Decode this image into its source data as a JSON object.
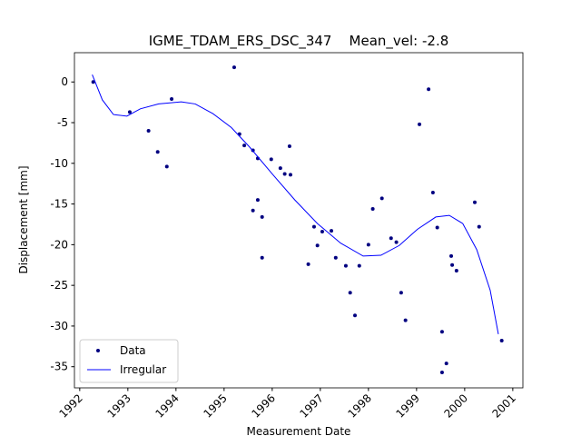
{
  "chart_data": {
    "type": "scatter",
    "title": "IGME_TDAM_ERS_DSC_347    Mean_vel: -2.8",
    "xlabel": "Measurement Date",
    "ylabel": "Displacement [mm]",
    "xlim": [
      1991.89,
      2001.21
    ],
    "ylim": [
      -37.6,
      3.6
    ],
    "xticks": [
      1992,
      1993,
      1994,
      1995,
      1996,
      1997,
      1998,
      1999,
      2000,
      2001
    ],
    "yticks": [
      0,
      -5,
      -10,
      -15,
      -20,
      -25,
      -30,
      -35
    ],
    "legend": "lower left",
    "series": [
      {
        "name": "Data",
        "mode": "markers",
        "color": "#000080",
        "x": [
          1992.28,
          1993.04,
          1993.43,
          1993.62,
          1993.81,
          1993.91,
          1995.21,
          1995.32,
          1995.42,
          1995.6,
          1995.7,
          1995.6,
          1995.7,
          1995.79,
          1995.79,
          1995.98,
          1996.17,
          1996.26,
          1996.36,
          1996.38,
          1996.75,
          1996.87,
          1996.94,
          1997.04,
          1997.23,
          1997.32,
          1997.53,
          1997.62,
          1997.72,
          1997.81,
          1998.0,
          1998.09,
          1998.28,
          1998.47,
          1998.58,
          1998.68,
          1998.77,
          1999.06,
          1999.25,
          1999.34,
          1999.43,
          1999.53,
          1999.53,
          1999.62,
          1999.72,
          1999.74,
          1999.83,
          2000.21,
          2000.3,
          2000.77
        ],
        "values": [
          0,
          -3.7,
          -6.0,
          -8.6,
          -10.4,
          -2.1,
          1.8,
          -6.4,
          -7.8,
          -8.4,
          -9.4,
          -15.8,
          -14.5,
          -16.6,
          -21.6,
          -9.5,
          -10.6,
          -11.3,
          -7.9,
          -11.4,
          -22.4,
          -17.8,
          -20.1,
          -18.4,
          -18.3,
          -21.6,
          -22.6,
          -25.9,
          -28.7,
          -22.6,
          -20.0,
          -15.6,
          -14.3,
          -19.2,
          -19.7,
          -25.9,
          -29.3,
          -5.2,
          -0.9,
          -13.6,
          -17.9,
          -30.7,
          -35.7,
          -34.6,
          -21.4,
          -22.5,
          -23.2,
          -14.8,
          -17.8,
          -31.8
        ]
      },
      {
        "name": "Irregular",
        "mode": "line",
        "color": "#0000ff",
        "x": [
          1992.26,
          1992.47,
          1992.7,
          1992.98,
          1993.26,
          1993.64,
          1994.11,
          1994.4,
          1994.77,
          1995.15,
          1995.53,
          1996.0,
          1996.47,
          1996.94,
          1997.42,
          1997.89,
          1998.26,
          1998.64,
          1999.02,
          1999.4,
          1999.68,
          1999.96,
          2000.25,
          2000.53,
          2000.7
        ],
        "values": [
          0.9,
          -2.2,
          -4.0,
          -4.2,
          -3.3,
          -2.7,
          -2.45,
          -2.7,
          -3.9,
          -5.6,
          -8.0,
          -11.3,
          -14.5,
          -17.4,
          -19.8,
          -21.4,
          -21.3,
          -20.1,
          -18.1,
          -16.6,
          -16.4,
          -17.4,
          -20.6,
          -25.6,
          -31.0
        ]
      }
    ]
  }
}
